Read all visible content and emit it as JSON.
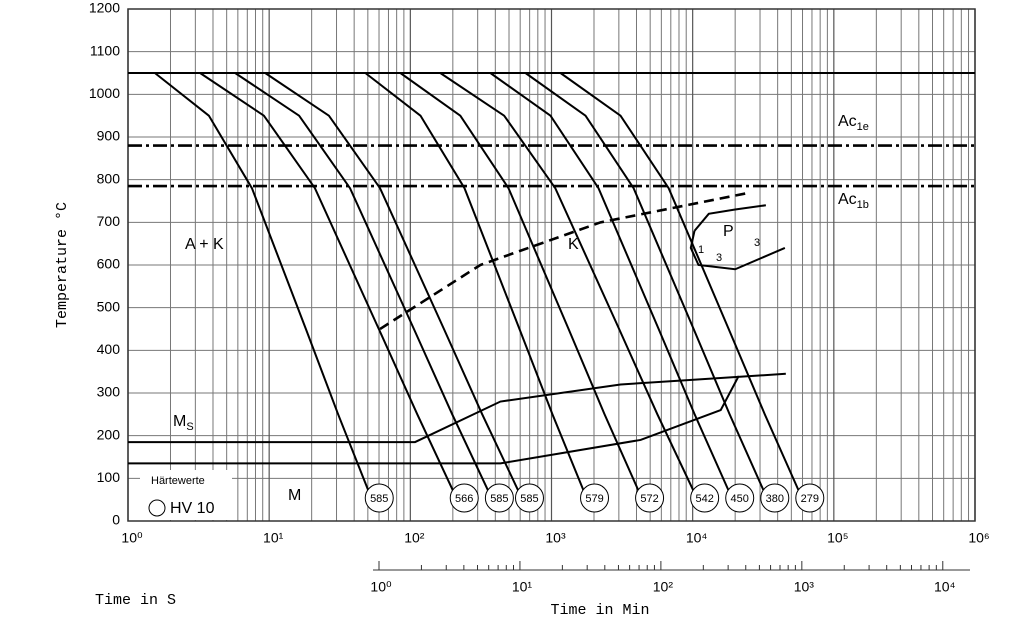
{
  "chart_data": {
    "type": "line",
    "xlabel": "Time in S",
    "x2label": "Time in Min",
    "ylabel": "Temperature °C",
    "xlog": true,
    "grid": true,
    "xlim": [
      1,
      1000000
    ],
    "xticks": [
      {
        "value": 1,
        "label": "10⁰"
      },
      {
        "value": 10,
        "label": "10¹"
      },
      {
        "value": 100,
        "label": "10²"
      },
      {
        "value": 1000,
        "label": "10³"
      },
      {
        "value": 10000,
        "label": "10⁴"
      },
      {
        "value": 100000,
        "label": "10⁵"
      },
      {
        "value": 1000000,
        "label": "10⁶"
      }
    ],
    "xminorticks": [
      2,
      3,
      4,
      5,
      6,
      7,
      8,
      9,
      20,
      30,
      40,
      50,
      60,
      70,
      80,
      90,
      200,
      300,
      400,
      500,
      600,
      700,
      800,
      900,
      2000,
      3000,
      4000,
      5000,
      6000,
      7000,
      8000,
      9000,
      20000,
      30000,
      40000,
      50000,
      60000,
      70000,
      80000,
      90000,
      200000,
      300000,
      400000,
      500000,
      600000,
      700000,
      800000,
      900000
    ],
    "x2lim": [
      1,
      15600
    ],
    "x2ticks": [
      {
        "value": 1,
        "label": "10⁰"
      },
      {
        "value": 10,
        "label": "10¹"
      },
      {
        "value": 100,
        "label": "10²"
      },
      {
        "value": 1000,
        "label": "10³"
      },
      {
        "value": 10000,
        "label": "10⁴"
      }
    ],
    "x2minorticks": [
      2,
      3,
      4,
      5,
      6,
      7,
      8,
      9,
      20,
      30,
      40,
      50,
      60,
      70,
      80,
      90,
      200,
      300,
      400,
      500,
      600,
      700,
      800,
      900,
      2000,
      3000,
      4000,
      5000,
      6000,
      7000,
      8000,
      9000
    ],
    "ylim": [
      0,
      1200
    ],
    "yticks": [
      0,
      100,
      200,
      300,
      400,
      500,
      600,
      700,
      800,
      900,
      1000,
      1100,
      1200
    ],
    "series": [
      {
        "color": "#000000",
        "style": "solid",
        "label": 585,
        "x": [
          1.55,
          3.74,
          7.55,
          18.2,
          30.8,
          52
        ],
        "values": [
          1050,
          950,
          780,
          450,
          250,
          60
        ]
      },
      {
        "color": "#000000",
        "style": "solid",
        "label": 566,
        "x": [
          3.24,
          9.18,
          21.1,
          59.8,
          112,
          208
        ],
        "values": [
          1050,
          950,
          780,
          450,
          250,
          60
        ]
      },
      {
        "color": "#000000",
        "style": "solid",
        "label": 585,
        "x": [
          5.74,
          16.3,
          37.4,
          106,
          198,
          369
        ],
        "values": [
          1050,
          950,
          780,
          450,
          250,
          60
        ]
      },
      {
        "color": "#000000",
        "style": "solid",
        "label": 585,
        "x": [
          9.37,
          26.5,
          61,
          173,
          323,
          603
        ],
        "values": [
          1050,
          950,
          780,
          450,
          250,
          60
        ]
      },
      {
        "color": "#000000",
        "style": "solid",
        "label": 579,
        "x": [
          48,
          118,
          242,
          593,
          1016,
          1742
        ],
        "values": [
          1050,
          950,
          780,
          450,
          250,
          60
        ]
      },
      {
        "color": "#000000",
        "style": "solid",
        "label": 572,
        "x": [
          85,
          226,
          496,
          1321,
          2377,
          4276
        ],
        "values": [
          1050,
          950,
          780,
          450,
          250,
          60
        ]
      },
      {
        "color": "#000000",
        "style": "solid",
        "label": 542,
        "x": [
          163,
          462,
          1064,
          3013,
          5623,
          10500
        ],
        "values": [
          1050,
          950,
          780,
          450,
          250,
          60
        ]
      },
      {
        "color": "#000000",
        "style": "solid",
        "label": 450,
        "x": [
          369,
          984,
          2153,
          5741,
          10330,
          18600
        ],
        "values": [
          1050,
          950,
          780,
          450,
          250,
          60
        ]
      },
      {
        "color": "#000000",
        "style": "solid",
        "label": 380,
        "x": [
          654,
          1742,
          3817,
          10160,
          18280,
          32960
        ],
        "values": [
          1050,
          950,
          780,
          450,
          250,
          60
        ]
      },
      {
        "color": "#000000",
        "style": "solid",
        "label": 279,
        "x": [
          1158,
          3083,
          6761,
          17990,
          32430,
          58340
        ],
        "values": [
          1050,
          950,
          780,
          450,
          250,
          60
        ]
      },
      {
        "color": "#000000",
        "style": "solid",
        "x": [
          1,
          1000000
        ],
        "values": [
          1050,
          1050
        ]
      },
      {
        "color": "#000000",
        "style": "dashdot",
        "x": [
          1,
          1000000
        ],
        "values": [
          880,
          880
        ]
      },
      {
        "color": "#000000",
        "style": "dashdot",
        "x": [
          1,
          1000000
        ],
        "values": [
          785,
          785
        ]
      },
      {
        "color": "#000000",
        "style": "dashed",
        "x": [
          61,
          313,
          2228,
          25800
        ],
        "values": [
          450,
          600,
          700,
          770
        ]
      },
      {
        "color": "#000000",
        "style": "solid",
        "x": [
          1,
          108,
          435,
          3083,
          45700
        ],
        "values": [
          185,
          185,
          280,
          320,
          345
        ]
      },
      {
        "color": "#000000",
        "style": "solid",
        "x": [
          1,
          435,
          4276,
          15800,
          21200
        ],
        "values": [
          135,
          135,
          190,
          260,
          340
        ]
      },
      {
        "color": "#000000",
        "style": "solid",
        "x": [
          10300,
          13000,
          20000,
          33000
        ],
        "values": [
          680,
          720,
          730,
          740
        ]
      },
      {
        "color": "#000000",
        "style": "solid",
        "x": [
          10300,
          9700,
          11000,
          20000,
          45000
        ],
        "values": [
          680,
          640,
          600,
          590,
          640
        ]
      }
    ],
    "annotations": {
      "a_k": "A + K",
      "k": "K",
      "p": "P",
      "p1": "1",
      "p3a": "3",
      "p3b": "3",
      "ms": "M",
      "ms_sub": "S",
      "ac1e": "Ac",
      "ac1e_sub": "1e",
      "ac1b": "Ac",
      "ac1b_sub": "1b",
      "m": "M",
      "hardness_title": "Härtewerte",
      "hardness_unit": "HV 10"
    }
  }
}
